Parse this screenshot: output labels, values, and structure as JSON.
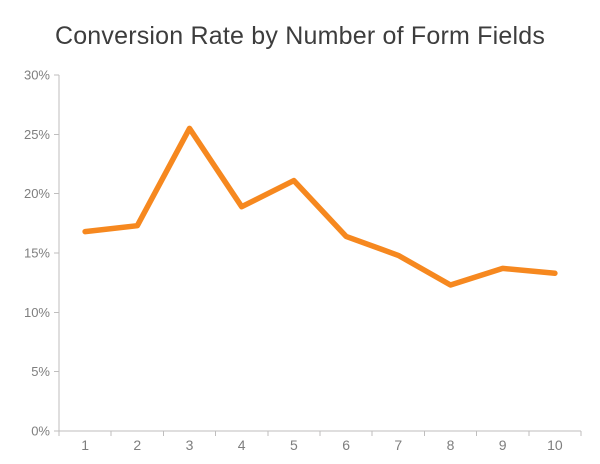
{
  "page": {
    "background": "#ffffff"
  },
  "chart_data": {
    "type": "line",
    "title": "Conversion Rate by Number of Form Fields",
    "xlabel": "",
    "ylabel": "",
    "categories": [
      "1",
      "2",
      "3",
      "4",
      "5",
      "6",
      "7",
      "8",
      "9",
      "10"
    ],
    "series": [
      {
        "name": "Conversion Rate",
        "values": [
          16.8,
          17.3,
          25.5,
          18.9,
          21.1,
          16.4,
          14.8,
          12.3,
          13.7,
          13.3
        ]
      }
    ],
    "ylim": [
      0,
      30
    ],
    "y_ticks": [
      {
        "value": 0,
        "label": "0%"
      },
      {
        "value": 5,
        "label": "5%"
      },
      {
        "value": 10,
        "label": "10%"
      },
      {
        "value": 15,
        "label": "15%"
      },
      {
        "value": 20,
        "label": "20%"
      },
      {
        "value": 25,
        "label": "25%"
      },
      {
        "value": 30,
        "label": "30%"
      }
    ],
    "grid": false,
    "legend": false,
    "colors": {
      "line": "#F6881F",
      "axis": "#BFBEBE",
      "tick_labels": "#7E7E7E",
      "title": "#3D3D3D"
    }
  }
}
